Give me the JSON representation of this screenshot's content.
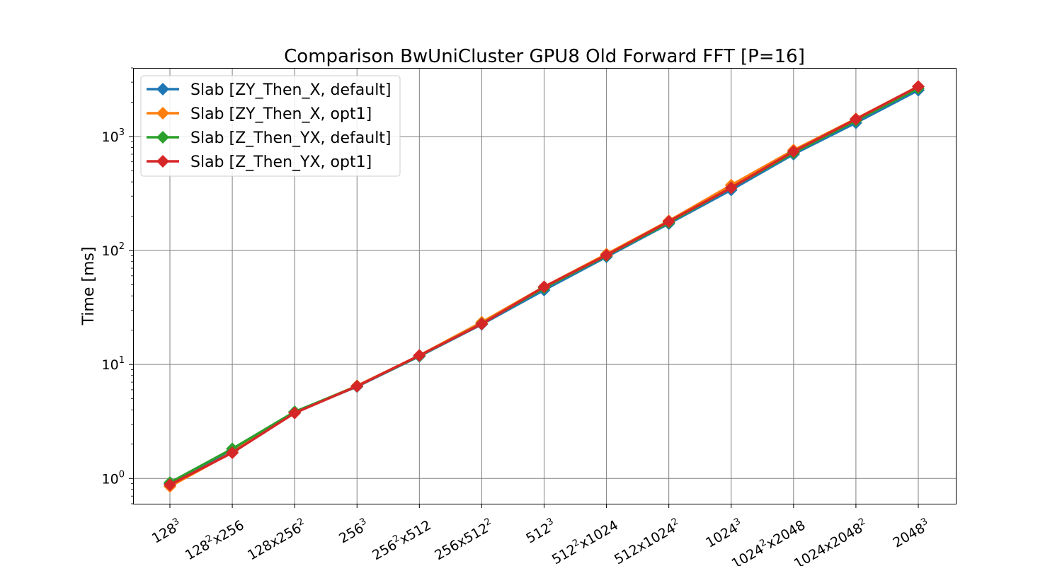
{
  "chart_data": {
    "type": "line",
    "title": "Comparison BwUniCluster GPU8 Old Forward FFT [P=16]",
    "xlabel": "",
    "ylabel": "Time [ms]",
    "yscale": "log",
    "ylim": [
      0.6,
      4000
    ],
    "grid": true,
    "legend_position": "top-left",
    "categories": [
      {
        "base": "128",
        "sup": "3",
        "tail": "",
        "sup2": ""
      },
      {
        "base": "128",
        "sup": "2",
        "tail": "x256",
        "sup2": ""
      },
      {
        "base": "128x256",
        "sup": "2",
        "tail": "",
        "sup2": ""
      },
      {
        "base": "256",
        "sup": "3",
        "tail": "",
        "sup2": ""
      },
      {
        "base": "256",
        "sup": "2",
        "tail": "x512",
        "sup2": ""
      },
      {
        "base": "256x512",
        "sup": "2",
        "tail": "",
        "sup2": ""
      },
      {
        "base": "512",
        "sup": "3",
        "tail": "",
        "sup2": ""
      },
      {
        "base": "512",
        "sup": "2",
        "tail": "x1024",
        "sup2": ""
      },
      {
        "base": "512x1024",
        "sup": "2",
        "tail": "",
        "sup2": ""
      },
      {
        "base": "1024",
        "sup": "3",
        "tail": "",
        "sup2": ""
      },
      {
        "base": "1024",
        "sup": "2",
        "tail": "x2048",
        "sup2": ""
      },
      {
        "base": "1024x2048",
        "sup": "2",
        "tail": "",
        "sup2": ""
      },
      {
        "base": "2048",
        "sup": "3",
        "tail": "",
        "sup2": ""
      }
    ],
    "yticks": [
      {
        "value": 1,
        "base": "10",
        "exp": "0"
      },
      {
        "value": 10,
        "base": "10",
        "exp": "1"
      },
      {
        "value": 100,
        "base": "10",
        "exp": "2"
      },
      {
        "value": 1000,
        "base": "10",
        "exp": "3"
      }
    ],
    "series": [
      {
        "name": "Slab [ZY_Then_X, default]",
        "color": "#1f77b4",
        "values": [
          0.9,
          1.75,
          3.8,
          6.4,
          11.8,
          22.5,
          45,
          88,
          172,
          340,
          700,
          1320,
          2550
        ]
      },
      {
        "name": "Slab [ZY_Then_X, opt1]",
        "color": "#ff7f0e",
        "values": [
          0.85,
          1.7,
          3.8,
          6.5,
          12.0,
          23.5,
          48,
          93,
          182,
          375,
          760,
          1430,
          2750
        ]
      },
      {
        "name": "Slab [Z_Then_YX, default]",
        "color": "#2ca02c",
        "values": [
          0.92,
          1.82,
          3.85,
          6.45,
          11.9,
          22.8,
          47,
          90,
          176,
          355,
          720,
          1380,
          2650
        ]
      },
      {
        "name": "Slab [Z_Then_YX, opt1]",
        "color": "#d62728",
        "values": [
          0.88,
          1.68,
          3.75,
          6.45,
          12.0,
          22.7,
          48,
          91,
          180,
          355,
          740,
          1420,
          2750
        ]
      }
    ]
  }
}
